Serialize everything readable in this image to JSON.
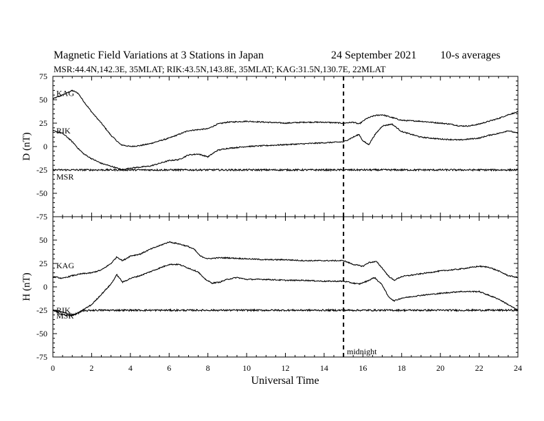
{
  "header": {
    "title": "Magnetic Field Variations at 3 Stations in Japan",
    "date": "24 September 2021",
    "averaging": "10-s averages",
    "subtitle": "MSR:44.4N,142.3E, 35MLAT;  RIK:43.5N,143.8E, 35MLAT;  KAG:31.5N,130.7E, 22MLAT"
  },
  "chart_data": {
    "type": "line",
    "xlabel": "Universal Time",
    "xlim": [
      0,
      24
    ],
    "x_ticks": [
      0,
      2,
      4,
      6,
      8,
      10,
      12,
      14,
      16,
      18,
      20,
      22,
      24
    ],
    "annotation": {
      "x": 15,
      "label": "midnight",
      "style": "dashed"
    },
    "panels": [
      {
        "id": "D",
        "ylabel": "D (nT)",
        "ylim": [
          -75,
          75
        ],
        "y_ticks": [
          75,
          50,
          25,
          0,
          -25,
          -50,
          -75
        ],
        "series": [
          {
            "name": "KAG",
            "color": "#000000",
            "x": [
              0,
              0.5,
              1,
              1.3,
              1.6,
              2,
              2.5,
              3,
              3.5,
              4,
              4.5,
              5,
              5.5,
              6,
              6.5,
              7,
              7.5,
              8,
              8.5,
              9,
              10,
              11,
              12,
              13,
              14,
              15,
              15.5,
              15.8,
              16.2,
              16.6,
              17,
              17.5,
              18,
              19,
              20,
              20.5,
              21,
              21.5,
              22,
              22.5,
              23,
              23.5,
              24
            ],
            "values": [
              51,
              55,
              60,
              57,
              48,
              37,
              25,
              12,
              2,
              0,
              1,
              3,
              6,
              9,
              13,
              17,
              18,
              19,
              24,
              26,
              27,
              26,
              25,
              26,
              26,
              25,
              26,
              24,
              30,
              33,
              34,
              31,
              28,
              27,
              25,
              24,
              22,
              22,
              24,
              27,
              30,
              34,
              37
            ]
          },
          {
            "name": "RIK",
            "color": "#000000",
            "x": [
              0,
              0.5,
              0.8,
              1.1,
              1.3,
              1.6,
              2,
              2.5,
              3,
              3.3,
              3.6,
              4,
              4.5,
              5,
              5.5,
              6,
              6.5,
              7,
              7.5,
              8,
              8.5,
              9,
              10,
              11,
              12,
              13,
              14,
              15,
              15.5,
              15.8,
              16,
              16.3,
              16.6,
              17,
              17.5,
              18,
              19,
              20,
              21,
              21.5,
              22,
              22.5,
              23,
              23.5,
              24
            ],
            "values": [
              17,
              14,
              9,
              3,
              -2,
              -8,
              -13,
              -18,
              -21,
              -23,
              -25,
              -23,
              -22,
              -21,
              -18,
              -15,
              -14,
              -9,
              -8,
              -11,
              -4,
              -2,
              0,
              1,
              2,
              3,
              4,
              5,
              10,
              13,
              6,
              2,
              12,
              22,
              24,
              16,
              10,
              8,
              7,
              8,
              9,
              12,
              14,
              17,
              14
            ]
          },
          {
            "name": "MSR",
            "color": "#000000",
            "x": [
              0,
              2,
              4,
              6,
              8,
              10,
              12,
              14,
              15,
              16,
              18,
              20,
              22,
              24
            ],
            "values": [
              -25,
              -25,
              -25,
              -25,
              -25,
              -25,
              -25,
              -25,
              -25,
              -25,
              -25,
              -25,
              -25,
              -25
            ]
          }
        ]
      },
      {
        "id": "H",
        "ylabel": "H (nT)",
        "ylim": [
          -75,
          75
        ],
        "y_ticks": [
          75,
          50,
          25,
          0,
          -25,
          -50,
          -75
        ],
        "series": [
          {
            "name": "KAG",
            "color": "#000000",
            "x": [
              0,
              0.5,
              1,
              1.5,
              2,
              2.5,
              3,
              3.3,
              3.6,
              4,
              4.5,
              5,
              5.5,
              6,
              6.5,
              7,
              7.3,
              7.6,
              8,
              8.5,
              9,
              10,
              11,
              12,
              13,
              14,
              15,
              15.5,
              16,
              16.3,
              16.7,
              17,
              17.3,
              17.6,
              18,
              19,
              20,
              21,
              22,
              22.5,
              23,
              23.5,
              24
            ],
            "values": [
              11,
              9,
              12,
              14,
              15,
              18,
              25,
              32,
              28,
              33,
              35,
              40,
              44,
              48,
              46,
              43,
              40,
              33,
              30,
              31,
              31,
              30,
              29,
              29,
              28,
              28,
              28,
              24,
              22,
              26,
              27,
              20,
              12,
              7,
              11,
              14,
              17,
              19,
              22,
              21,
              17,
              12,
              10
            ]
          },
          {
            "name": "RIK",
            "color": "#000000",
            "x": [
              0,
              0.5,
              1,
              1.3,
              1.6,
              2,
              2.5,
              3,
              3.3,
              3.6,
              4,
              4.5,
              5,
              5.5,
              6,
              6.5,
              7,
              7.5,
              7.8,
              8.2,
              8.6,
              9,
              9.5,
              10,
              11,
              12,
              13,
              14,
              15,
              15.5,
              15.8,
              16.2,
              16.6,
              17,
              17.3,
              17.6,
              18,
              19,
              20,
              21,
              22,
              22.5,
              23,
              23.5,
              24
            ],
            "values": [
              -25,
              -27,
              -30,
              -28,
              -24,
              -19,
              -8,
              3,
              13,
              5,
              9,
              12,
              16,
              20,
              24,
              24,
              20,
              16,
              9,
              4,
              5,
              8,
              10,
              8,
              8,
              7,
              7,
              6,
              6,
              4,
              3,
              6,
              10,
              2,
              -10,
              -15,
              -12,
              -9,
              -7,
              -5,
              -5,
              -9,
              -13,
              -19,
              -25
            ]
          },
          {
            "name": "MSR",
            "color": "#000000",
            "x": [
              0,
              0.3,
              0.6,
              0.9,
              1.2,
              1.5,
              2,
              4,
              6,
              8,
              10,
              12,
              14,
              16,
              18,
              20,
              22,
              24
            ],
            "values": [
              -25,
              -28,
              -30,
              -31,
              -29,
              -26,
              -25,
              -25,
              -25,
              -25,
              -25,
              -25,
              -25,
              -25,
              -25,
              -25,
              -25,
              -25
            ]
          }
        ]
      }
    ]
  }
}
